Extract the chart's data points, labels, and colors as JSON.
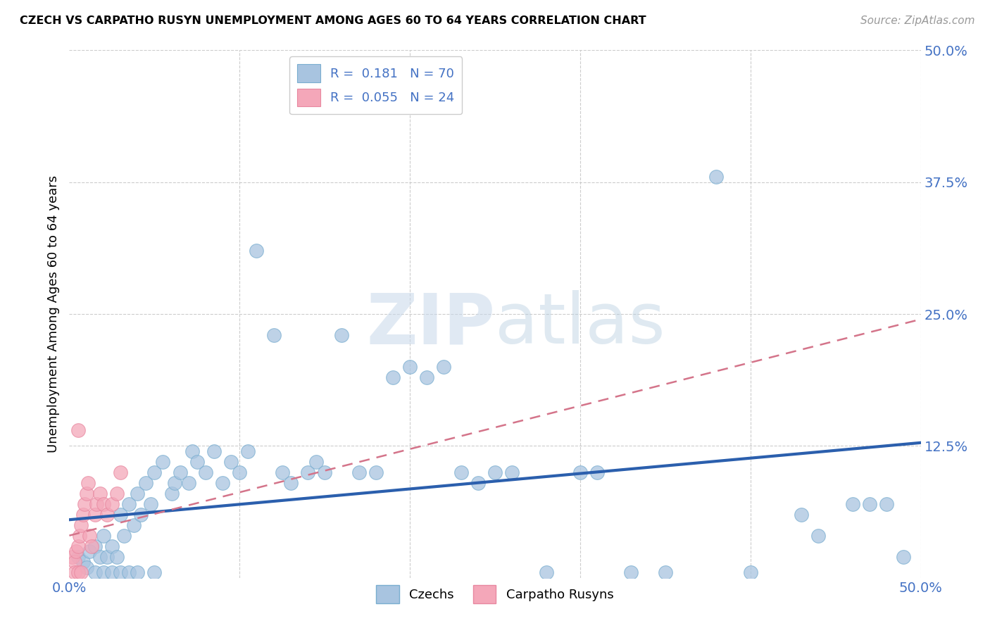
{
  "title": "CZECH VS CARPATHO RUSYN UNEMPLOYMENT AMONG AGES 60 TO 64 YEARS CORRELATION CHART",
  "source": "Source: ZipAtlas.com",
  "ylabel": "Unemployment Among Ages 60 to 64 years",
  "xlim": [
    0.0,
    0.5
  ],
  "ylim": [
    0.0,
    0.5
  ],
  "czechs_color": "#a8c4e0",
  "czechs_edge": "#7aaed0",
  "carpatho_color": "#f4a7b9",
  "carpatho_edge": "#e888a0",
  "czechs_line_color": "#2b5fad",
  "carpatho_line_color": "#d4748a",
  "grid_color": "#cccccc",
  "tick_color": "#4472c4",
  "watermark_color": "#ccddf0",
  "czech_line_y0": 0.055,
  "czech_line_y1": 0.128,
  "carpatho_line_y0": 0.04,
  "carpatho_line_y1": 0.245,
  "czechs_x": [
    0.005,
    0.008,
    0.01,
    0.012,
    0.015,
    0.015,
    0.018,
    0.02,
    0.02,
    0.022,
    0.025,
    0.025,
    0.028,
    0.03,
    0.03,
    0.032,
    0.035,
    0.035,
    0.038,
    0.04,
    0.04,
    0.042,
    0.045,
    0.048,
    0.05,
    0.05,
    0.055,
    0.06,
    0.062,
    0.065,
    0.07,
    0.072,
    0.075,
    0.08,
    0.085,
    0.09,
    0.095,
    0.1,
    0.105,
    0.11,
    0.12,
    0.125,
    0.13,
    0.14,
    0.145,
    0.15,
    0.16,
    0.17,
    0.18,
    0.19,
    0.2,
    0.21,
    0.22,
    0.23,
    0.24,
    0.25,
    0.26,
    0.28,
    0.3,
    0.31,
    0.33,
    0.35,
    0.38,
    0.4,
    0.43,
    0.44,
    0.46,
    0.47,
    0.48,
    0.49
  ],
  "czechs_y": [
    0.02,
    0.015,
    0.01,
    0.025,
    0.03,
    0.005,
    0.02,
    0.04,
    0.005,
    0.02,
    0.03,
    0.005,
    0.02,
    0.06,
    0.005,
    0.04,
    0.07,
    0.005,
    0.05,
    0.08,
    0.005,
    0.06,
    0.09,
    0.07,
    0.1,
    0.005,
    0.11,
    0.08,
    0.09,
    0.1,
    0.09,
    0.12,
    0.11,
    0.1,
    0.12,
    0.09,
    0.11,
    0.1,
    0.12,
    0.31,
    0.23,
    0.1,
    0.09,
    0.1,
    0.11,
    0.1,
    0.23,
    0.1,
    0.1,
    0.19,
    0.2,
    0.19,
    0.2,
    0.1,
    0.09,
    0.1,
    0.1,
    0.005,
    0.1,
    0.1,
    0.005,
    0.005,
    0.38,
    0.005,
    0.06,
    0.04,
    0.07,
    0.07,
    0.07,
    0.02
  ],
  "carpatho_x": [
    0.002,
    0.003,
    0.004,
    0.005,
    0.006,
    0.007,
    0.008,
    0.009,
    0.01,
    0.011,
    0.012,
    0.013,
    0.015,
    0.016,
    0.018,
    0.02,
    0.022,
    0.025,
    0.028,
    0.03,
    0.003,
    0.005,
    0.007,
    0.005
  ],
  "carpatho_y": [
    0.02,
    0.015,
    0.025,
    0.03,
    0.04,
    0.05,
    0.06,
    0.07,
    0.08,
    0.09,
    0.04,
    0.03,
    0.06,
    0.07,
    0.08,
    0.07,
    0.06,
    0.07,
    0.08,
    0.1,
    0.005,
    0.005,
    0.005,
    0.14
  ]
}
